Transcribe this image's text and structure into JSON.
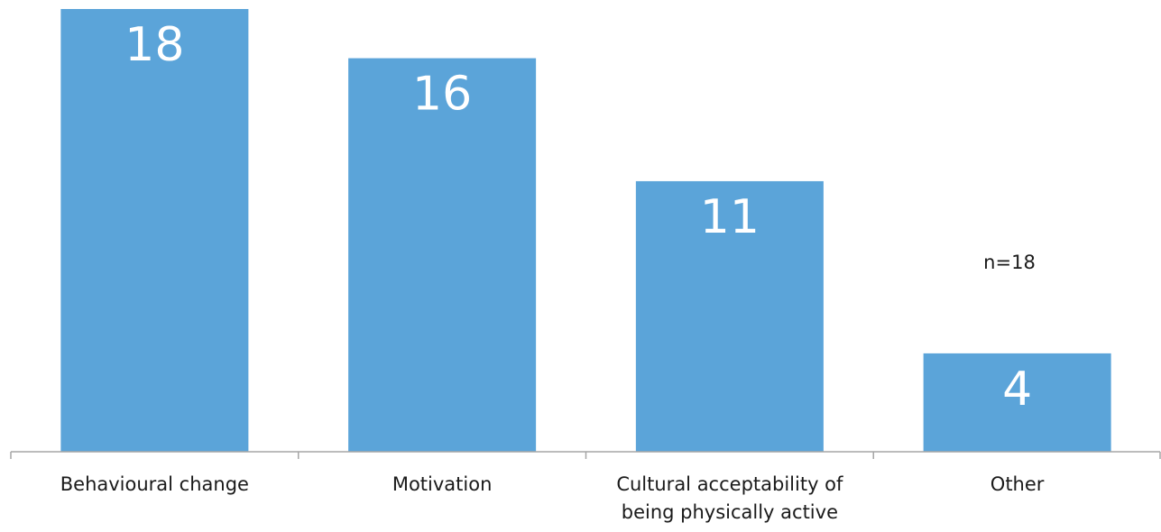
{
  "chart_data": {
    "type": "bar",
    "categories": [
      [
        "Behavioural change"
      ],
      [
        "Motivation"
      ],
      [
        "Cultural acceptability of",
        "being physically active"
      ],
      [
        "Other"
      ]
    ],
    "values": [
      18,
      16,
      11,
      4
    ],
    "data_labels": [
      "18",
      "16",
      "11",
      "4"
    ],
    "annotation": "n=18",
    "title": "",
    "xlabel": "",
    "ylabel": "",
    "ylim": [
      0,
      18
    ],
    "grid": false,
    "bar_color": "#5BA4D9",
    "axis_color": "#a6a6a6"
  }
}
